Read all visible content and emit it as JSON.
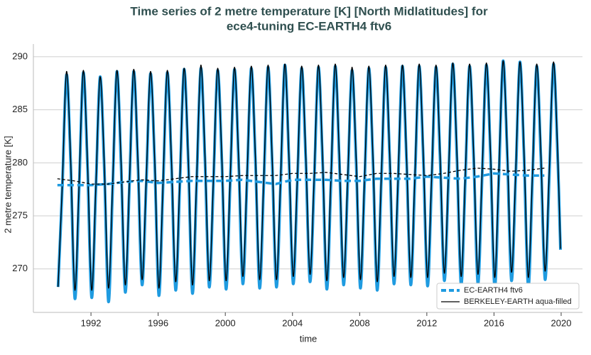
{
  "chart_data": {
    "type": "line",
    "title": [
      "Time series of 2 metre temperature [K] [North Midlatitudes] for",
      "ece4-tuning EC-EARTH4 ftv6"
    ],
    "xlabel": "time",
    "ylabel": "2 metre temperature [K]",
    "xlim": [
      1988.57,
      2021.27
    ],
    "xticks": [
      1992,
      1996,
      2000,
      2004,
      2008,
      2012,
      2016,
      2020
    ],
    "ylim": [
      265.9,
      291.2
    ],
    "yticks": [
      270,
      275,
      280,
      285,
      290
    ],
    "grid": true,
    "legend": "lower right",
    "x": [
      1990.04,
      1990.29,
      1990.54,
      1990.79,
      1991.04,
      1991.29,
      1991.54,
      1991.79,
      1992.04,
      1992.29,
      1992.54,
      1992.79,
      1993.04,
      1993.29,
      1993.54,
      1993.79,
      1994.04,
      1994.29,
      1994.54,
      1994.79,
      1995.04,
      1995.29,
      1995.54,
      1995.79,
      1996.04,
      1996.29,
      1996.54,
      1996.79,
      1997.04,
      1997.29,
      1997.54,
      1997.79,
      1998.04,
      1998.29,
      1998.54,
      1998.79,
      1999.04,
      1999.29,
      1999.54,
      1999.79,
      2000.04,
      2000.29,
      2000.54,
      2000.79,
      2001.04,
      2001.29,
      2001.54,
      2001.79,
      2002.04,
      2002.29,
      2002.54,
      2002.79,
      2003.04,
      2003.29,
      2003.54,
      2003.79,
      2004.04,
      2004.29,
      2004.54,
      2004.79,
      2005.04,
      2005.29,
      2005.54,
      2005.79,
      2006.04,
      2006.29,
      2006.54,
      2006.79,
      2007.04,
      2007.29,
      2007.54,
      2007.79,
      2008.04,
      2008.29,
      2008.54,
      2008.79,
      2009.04,
      2009.29,
      2009.54,
      2009.79,
      2010.04,
      2010.29,
      2010.54,
      2010.79,
      2011.04,
      2011.29,
      2011.54,
      2011.79,
      2012.04,
      2012.29,
      2012.54,
      2012.79,
      2013.04,
      2013.29,
      2013.54,
      2013.79,
      2014.04,
      2014.29,
      2014.54,
      2014.79,
      2015.04,
      2015.29,
      2015.54,
      2015.79,
      2016.04,
      2016.29,
      2016.54,
      2016.79,
      2017.04,
      2017.29,
      2017.54,
      2017.79,
      2018.04,
      2018.29,
      2018.54,
      2018.79,
      2019.04,
      2019.29,
      2019.54,
      2019.79,
      2019.96
    ],
    "series": [
      {
        "name": "EC-EARTH4 ftv6",
        "color": "#1f9be0",
        "linewidth": 4,
        "values": [
          268.3,
          277.6,
          288.3,
          280.0,
          267.2,
          277.4,
          288.5,
          279.8,
          267.3,
          277.5,
          288.1,
          279.6,
          266.9,
          277.6,
          288.6,
          279.9,
          267.8,
          277.9,
          288.6,
          280.1,
          268.5,
          278.0,
          288.4,
          280.2,
          267.5,
          277.7,
          288.5,
          280.0,
          268.0,
          277.9,
          288.8,
          280.3,
          267.7,
          278.0,
          288.9,
          280.2,
          268.3,
          278.0,
          288.7,
          280.3,
          268.1,
          278.1,
          288.8,
          280.2,
          268.6,
          278.2,
          288.9,
          280.4,
          268.2,
          278.0,
          289.0,
          280.1,
          268.3,
          277.9,
          289.2,
          280.3,
          268.6,
          278.2,
          288.9,
          280.4,
          268.8,
          278.1,
          289.0,
          280.3,
          268.1,
          278.0,
          289.1,
          280.2,
          268.5,
          278.1,
          288.7,
          280.1,
          268.2,
          278.0,
          288.9,
          280.3,
          268.0,
          278.2,
          289.0,
          280.4,
          268.6,
          278.2,
          289.1,
          280.3,
          268.5,
          278.3,
          289.1,
          280.5,
          268.4,
          278.3,
          289.0,
          280.4,
          268.9,
          278.4,
          289.3,
          280.6,
          268.5,
          278.3,
          289.1,
          280.5,
          268.6,
          278.5,
          289.2,
          280.7,
          268.2,
          278.6,
          289.6,
          280.8,
          268.9,
          278.5,
          289.5,
          280.6,
          268.3,
          278.4,
          289.1,
          280.6,
          269.0,
          278.6,
          289.3,
          280.7,
          271.8
        ]
      },
      {
        "name": "BERKELEY-EARTH aqua-filled",
        "color": "#000000",
        "linewidth": 1.3,
        "values": [
          268.3,
          277.9,
          288.6,
          280.3,
          268.0,
          278.0,
          288.7,
          280.2,
          268.0,
          277.8,
          288.1,
          280.0,
          268.2,
          278.0,
          288.7,
          280.2,
          268.5,
          278.2,
          288.8,
          280.4,
          269.0,
          278.4,
          288.6,
          280.5,
          268.2,
          278.1,
          288.7,
          280.4,
          268.8,
          278.3,
          288.9,
          280.6,
          268.5,
          278.4,
          289.2,
          280.6,
          268.9,
          278.4,
          288.9,
          280.6,
          268.9,
          278.5,
          289.0,
          280.5,
          269.3,
          278.6,
          289.1,
          280.7,
          269.0,
          278.5,
          289.2,
          280.5,
          269.0,
          278.4,
          289.3,
          280.6,
          269.3,
          278.6,
          289.1,
          280.8,
          269.5,
          278.6,
          289.2,
          280.7,
          268.9,
          278.5,
          289.3,
          280.6,
          269.2,
          278.6,
          289.0,
          280.5,
          269.0,
          278.5,
          289.1,
          280.7,
          268.8,
          278.7,
          289.2,
          280.8,
          269.3,
          278.7,
          289.2,
          280.7,
          269.2,
          278.8,
          289.3,
          280.9,
          269.2,
          278.8,
          289.2,
          280.8,
          269.6,
          278.9,
          289.4,
          281.0,
          269.3,
          278.8,
          289.3,
          280.9,
          269.5,
          279.0,
          289.4,
          281.1,
          269.2,
          279.1,
          289.6,
          281.2,
          269.7,
          279.0,
          289.5,
          281.0,
          269.2,
          278.9,
          289.3,
          281.0,
          269.8,
          279.1,
          289.5,
          281.1,
          271.9
        ]
      }
    ],
    "annual_means": {
      "x": [
        1990,
        1991,
        1992,
        1993,
        1994,
        1995,
        1996,
        1997,
        1998,
        1999,
        2000,
        2001,
        2002,
        2003,
        2004,
        2005,
        2006,
        2007,
        2008,
        2009,
        2010,
        2011,
        2012,
        2013,
        2014,
        2015,
        2016,
        2017,
        2018,
        2019
      ],
      "series": [
        {
          "color": "#1f9be0",
          "linewidth": 3.5,
          "values": [
            277.9,
            277.9,
            277.9,
            278.0,
            278.2,
            278.3,
            278.1,
            278.2,
            278.3,
            278.3,
            278.3,
            278.4,
            278.2,
            278.0,
            278.4,
            278.4,
            278.4,
            278.3,
            278.3,
            278.5,
            278.5,
            278.5,
            278.7,
            278.6,
            278.5,
            278.7,
            279.0,
            278.9,
            278.8,
            278.8
          ]
        },
        {
          "color": "#000000",
          "linewidth": 1.3,
          "values": [
            278.5,
            278.3,
            278.0,
            278.0,
            278.2,
            278.4,
            278.3,
            278.5,
            278.7,
            278.7,
            278.7,
            278.8,
            278.8,
            278.8,
            279.0,
            279.0,
            279.1,
            278.9,
            278.7,
            279.0,
            279.0,
            278.9,
            278.8,
            279.0,
            279.3,
            279.5,
            279.4,
            279.2,
            279.3,
            279.5
          ]
        }
      ]
    }
  }
}
